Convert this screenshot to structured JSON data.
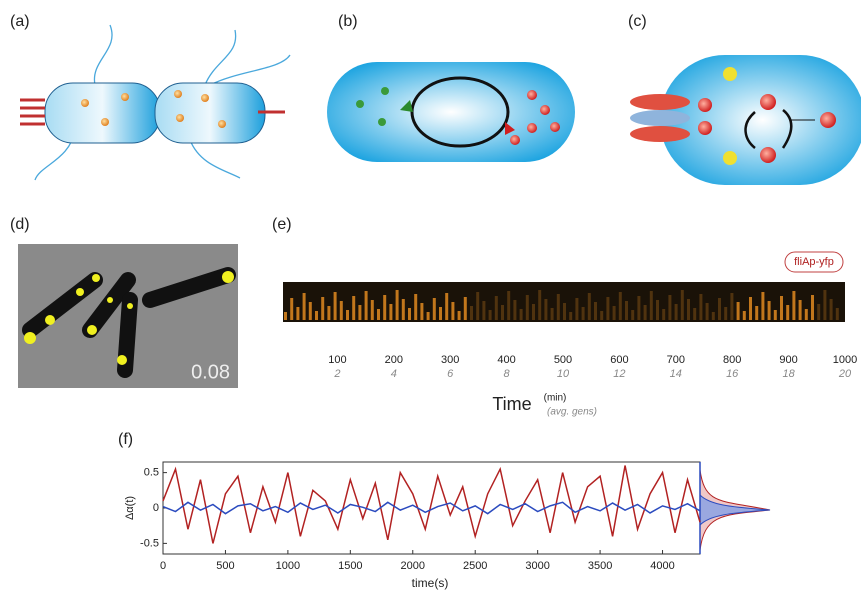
{
  "panel_labels": [
    "(a)",
    "(b)",
    "(c)",
    "(d)",
    "(e)",
    "(f)"
  ],
  "panel_d": {
    "annotation": "0.08"
  },
  "chart_data": [
    {
      "type": "kymograph",
      "legend": "fliAp-yfp",
      "xlabel": "Time",
      "xunit": "(min)",
      "x2unit": "(avg. gens)",
      "xlim": [
        0,
        1000
      ],
      "xticks": [
        100,
        200,
        300,
        400,
        500,
        600,
        700,
        800,
        900,
        1000
      ],
      "x2lim": [
        0,
        20
      ],
      "x2ticks": [
        2,
        4,
        6,
        8,
        10,
        12,
        14,
        16,
        18,
        20
      ]
    },
    {
      "type": "line",
      "ylabel": "Δα(t)",
      "xlabel": "time(s)",
      "xlim": [
        0,
        4300
      ],
      "xticks": [
        0,
        500,
        1000,
        1500,
        2000,
        2500,
        3000,
        3500,
        4000
      ],
      "ylim": [
        -0.65,
        0.65
      ],
      "yticks": [
        -0.5,
        0,
        0.5
      ],
      "x": [
        0,
        100,
        200,
        300,
        400,
        500,
        600,
        700,
        800,
        900,
        1000,
        1100,
        1200,
        1300,
        1400,
        1500,
        1600,
        1700,
        1800,
        1900,
        2000,
        2100,
        2200,
        2300,
        2400,
        2500,
        2600,
        2700,
        2800,
        2900,
        3000,
        3100,
        3200,
        3300,
        3400,
        3500,
        3600,
        3700,
        3800,
        3900,
        4000,
        4100,
        4200,
        4300
      ],
      "series": [
        {
          "color": "#b22222",
          "values": [
            0.1,
            0.55,
            -0.3,
            0.4,
            -0.5,
            0.2,
            0.45,
            -0.35,
            0.3,
            -0.2,
            0.5,
            -0.4,
            0.25,
            0.1,
            -0.3,
            0.4,
            -0.15,
            0.35,
            -0.45,
            0.5,
            0.2,
            -0.3,
            0.45,
            -0.1,
            0.3,
            -0.4,
            0.2,
            0.55,
            -0.25,
            0.1,
            0.4,
            -0.35,
            0.5,
            -0.2,
            0.3,
            0.45,
            -0.4,
            0.6,
            -0.3,
            0.2,
            0.5,
            -0.35,
            0.4,
            -0.2
          ]
        },
        {
          "color": "#2b4bbf",
          "values": [
            0.02,
            -0.05,
            0.08,
            -0.03,
            0.05,
            -0.08,
            0.03,
            0.06,
            -0.04,
            0.02,
            -0.06,
            0.07,
            -0.02,
            0.04,
            -0.07,
            0.05,
            0.01,
            -0.05,
            0.08,
            -0.03,
            0.04,
            -0.06,
            0.02,
            0.07,
            -0.04,
            0.03,
            -0.08,
            0.05,
            -0.02,
            0.06,
            -0.05,
            0.03,
            0.08,
            -0.06,
            0.02,
            -0.04,
            0.07,
            -0.03,
            0.05,
            -0.07,
            0.03,
            -0.02,
            0.06,
            -0.04
          ]
        }
      ]
    }
  ]
}
